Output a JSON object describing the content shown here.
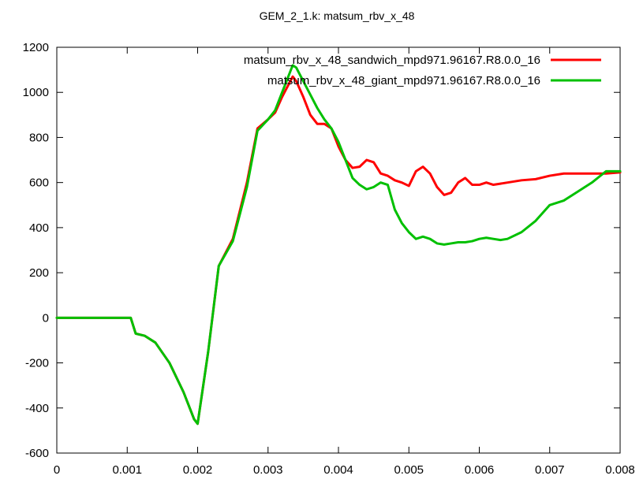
{
  "chart_data": {
    "type": "line",
    "title": "GEM_2_1.k: matsum_rbv_x_48",
    "xlabel": "",
    "ylabel": "",
    "xlim": [
      0,
      0.008
    ],
    "ylim": [
      -600,
      1200
    ],
    "x_ticks": [
      0,
      0.001,
      0.002,
      0.003,
      0.004,
      0.005,
      0.006,
      0.007,
      0.008
    ],
    "x_tick_labels": [
      "0",
      "0.001",
      "0.002",
      "0.003",
      "0.004",
      "0.005",
      "0.006",
      "0.007",
      "0.008"
    ],
    "y_ticks": [
      -600,
      -400,
      -200,
      0,
      200,
      400,
      600,
      800,
      1000,
      1200
    ],
    "y_tick_labels": [
      "-600",
      "-400",
      "-200",
      "0",
      "200",
      "400",
      "600",
      "800",
      "1000",
      "1200"
    ],
    "grid": false,
    "legend_position": "top-right",
    "series": [
      {
        "name": "matsum_rbv_x_48_sandwich_mpd971.96167.R8.0.0_16",
        "color": "#ff0000",
        "x": [
          0,
          0.0002,
          0.0004,
          0.0006,
          0.0008,
          0.00105,
          0.00112,
          0.00125,
          0.0014,
          0.0016,
          0.0018,
          0.00195,
          0.002,
          0.00215,
          0.0023,
          0.0025,
          0.0027,
          0.00285,
          0.003,
          0.0031,
          0.0032,
          0.00335,
          0.0034,
          0.0035,
          0.0036,
          0.0037,
          0.0038,
          0.0039,
          0.004,
          0.0041,
          0.0042,
          0.0043,
          0.0044,
          0.0045,
          0.0046,
          0.0047,
          0.0048,
          0.0049,
          0.005,
          0.0051,
          0.0052,
          0.0053,
          0.0054,
          0.0055,
          0.0056,
          0.0057,
          0.0058,
          0.0059,
          0.006,
          0.0061,
          0.0062,
          0.0063,
          0.0064,
          0.0066,
          0.0068,
          0.007,
          0.0072,
          0.0074,
          0.0076,
          0.0078,
          0.008
        ],
        "y": [
          0,
          0,
          0,
          0,
          0,
          0,
          -70,
          -80,
          -110,
          -200,
          -330,
          -450,
          -470,
          -150,
          230,
          350,
          600,
          840,
          880,
          910,
          980,
          1070,
          1050,
          980,
          900,
          860,
          860,
          840,
          760,
          700,
          665,
          670,
          700,
          690,
          640,
          630,
          610,
          600,
          585,
          650,
          670,
          640,
          580,
          545,
          555,
          600,
          620,
          590,
          590,
          600,
          590,
          595,
          600,
          610,
          615,
          630,
          640,
          640,
          640,
          640,
          645
        ]
      },
      {
        "name": "matsum_rbv_x_48_giant_mpd971.96167.R8.0.0_16",
        "color": "#00c000",
        "x": [
          0,
          0.0002,
          0.0004,
          0.0006,
          0.0008,
          0.00105,
          0.00112,
          0.00125,
          0.0014,
          0.0016,
          0.0018,
          0.00195,
          0.002,
          0.00215,
          0.0023,
          0.0025,
          0.0027,
          0.00285,
          0.003,
          0.0031,
          0.0032,
          0.00335,
          0.0034,
          0.0035,
          0.0036,
          0.0037,
          0.0038,
          0.0039,
          0.004,
          0.0041,
          0.0042,
          0.0043,
          0.0044,
          0.0045,
          0.0046,
          0.0047,
          0.0048,
          0.0049,
          0.005,
          0.0051,
          0.0052,
          0.0053,
          0.0054,
          0.0055,
          0.0056,
          0.0057,
          0.0058,
          0.0059,
          0.006,
          0.0061,
          0.0062,
          0.0063,
          0.0064,
          0.0066,
          0.0068,
          0.007,
          0.0072,
          0.0074,
          0.0076,
          0.0078,
          0.008
        ],
        "y": [
          0,
          0,
          0,
          0,
          0,
          0,
          -70,
          -80,
          -110,
          -200,
          -330,
          -450,
          -470,
          -150,
          230,
          340,
          580,
          830,
          880,
          920,
          1000,
          1120,
          1110,
          1050,
          990,
          930,
          880,
          840,
          780,
          700,
          620,
          590,
          570,
          580,
          600,
          590,
          480,
          420,
          380,
          350,
          360,
          350,
          330,
          325,
          330,
          335,
          335,
          340,
          350,
          355,
          350,
          345,
          350,
          380,
          430,
          500,
          520,
          560,
          600,
          650,
          650
        ]
      }
    ]
  }
}
